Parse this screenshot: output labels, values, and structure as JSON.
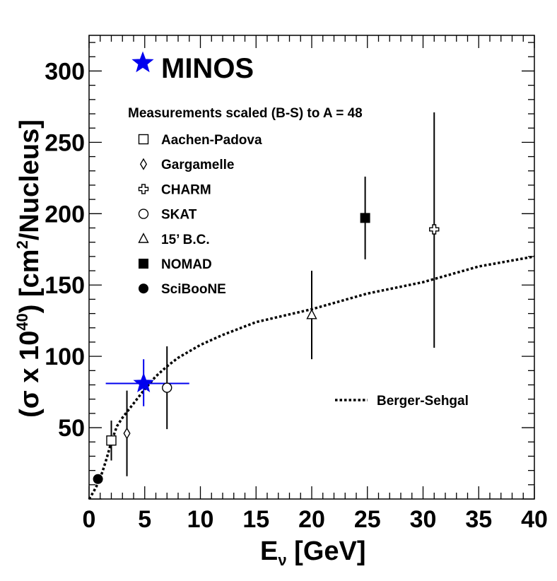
{
  "chart_data": {
    "type": "scatter",
    "title": "",
    "xlabel": {
      "main": "E",
      "sub": "ν",
      "rest": " [GeV]"
    },
    "ylabel": {
      "pre": "(σ x 10",
      "sup1": "40",
      "mid": ") [cm",
      "sup2": "2",
      "post": "/Nucleus]"
    },
    "xlim": [
      0,
      40
    ],
    "ylim": [
      0,
      325
    ],
    "x_ticks": [
      "0",
      "5",
      "10",
      "15",
      "20",
      "25",
      "30",
      "35",
      "40"
    ],
    "y_ticks": [
      {
        "value": 50,
        "label": "50"
      },
      {
        "value": 100,
        "label": "100"
      },
      {
        "value": 150,
        "label": "150"
      },
      {
        "value": 200,
        "label": "200"
      },
      {
        "value": 250,
        "label": "250"
      },
      {
        "value": 300,
        "label": "300"
      }
    ],
    "minos_label": "MINOS",
    "legend_header": "Measurements scaled (B-S) to A = 48",
    "legend_entries": [
      {
        "label": "Aachen-Padova",
        "marker": "open-square"
      },
      {
        "label": "Gargamelle",
        "marker": "open-diamond"
      },
      {
        "label": "CHARM",
        "marker": "open-cross"
      },
      {
        "label": "SKAT",
        "marker": "open-circle"
      },
      {
        "label": "15’ B.C.",
        "marker": "open-triangle"
      },
      {
        "label": "NOMAD",
        "marker": "filled-square"
      },
      {
        "label": "SciBooNE",
        "marker": "filled-circle"
      }
    ],
    "curve_label": "Berger-Sehgal",
    "series": [
      {
        "name": "MINOS",
        "marker": "star",
        "color": "#0000ee",
        "points": [
          {
            "x": 4.9,
            "y": 81,
            "yerr": [
              65,
              98
            ],
            "xerr": [
              1.5,
              9.0
            ]
          }
        ]
      },
      {
        "name": "Aachen-Padova",
        "marker": "open-square",
        "color": "#000000",
        "points": [
          {
            "x": 2.0,
            "y": 41,
            "yerr": [
              27,
              55
            ]
          }
        ]
      },
      {
        "name": "Gargamelle",
        "marker": "open-diamond",
        "color": "#000000",
        "points": [
          {
            "x": 3.4,
            "y": 46,
            "yerr": [
              16,
              76
            ]
          }
        ]
      },
      {
        "name": "CHARM",
        "marker": "open-cross",
        "color": "#000000",
        "points": [
          {
            "x": 31.0,
            "y": 189,
            "yerr": [
              106,
              271
            ]
          }
        ]
      },
      {
        "name": "SKAT",
        "marker": "open-circle",
        "color": "#000000",
        "points": [
          {
            "x": 7.0,
            "y": 78,
            "yerr": [
              49,
              107
            ]
          }
        ]
      },
      {
        "name": "15’ B.C.",
        "marker": "open-triangle",
        "color": "#000000",
        "points": [
          {
            "x": 20.0,
            "y": 129,
            "yerr": [
              98,
              160
            ]
          }
        ]
      },
      {
        "name": "NOMAD",
        "marker": "filled-square",
        "color": "#000000",
        "points": [
          {
            "x": 24.8,
            "y": 197,
            "yerr": [
              168,
              226
            ]
          }
        ]
      },
      {
        "name": "SciBooNE",
        "marker": "filled-circle",
        "color": "#000000",
        "points": [
          {
            "x": 0.8,
            "y": 14
          }
        ]
      }
    ],
    "curve": {
      "name": "Berger-Sehgal",
      "style": "dotted",
      "x": [
        0,
        0.4,
        0.8,
        1.2,
        1.6,
        2.0,
        2.5,
        3,
        4,
        5,
        6,
        7,
        8,
        10,
        12,
        15,
        20,
        25,
        30,
        35,
        40
      ],
      "y": [
        0,
        5,
        11,
        19,
        29,
        40,
        51,
        57,
        67,
        77,
        86,
        93,
        99,
        108,
        115,
        124,
        133,
        144,
        152,
        163,
        170
      ]
    }
  }
}
